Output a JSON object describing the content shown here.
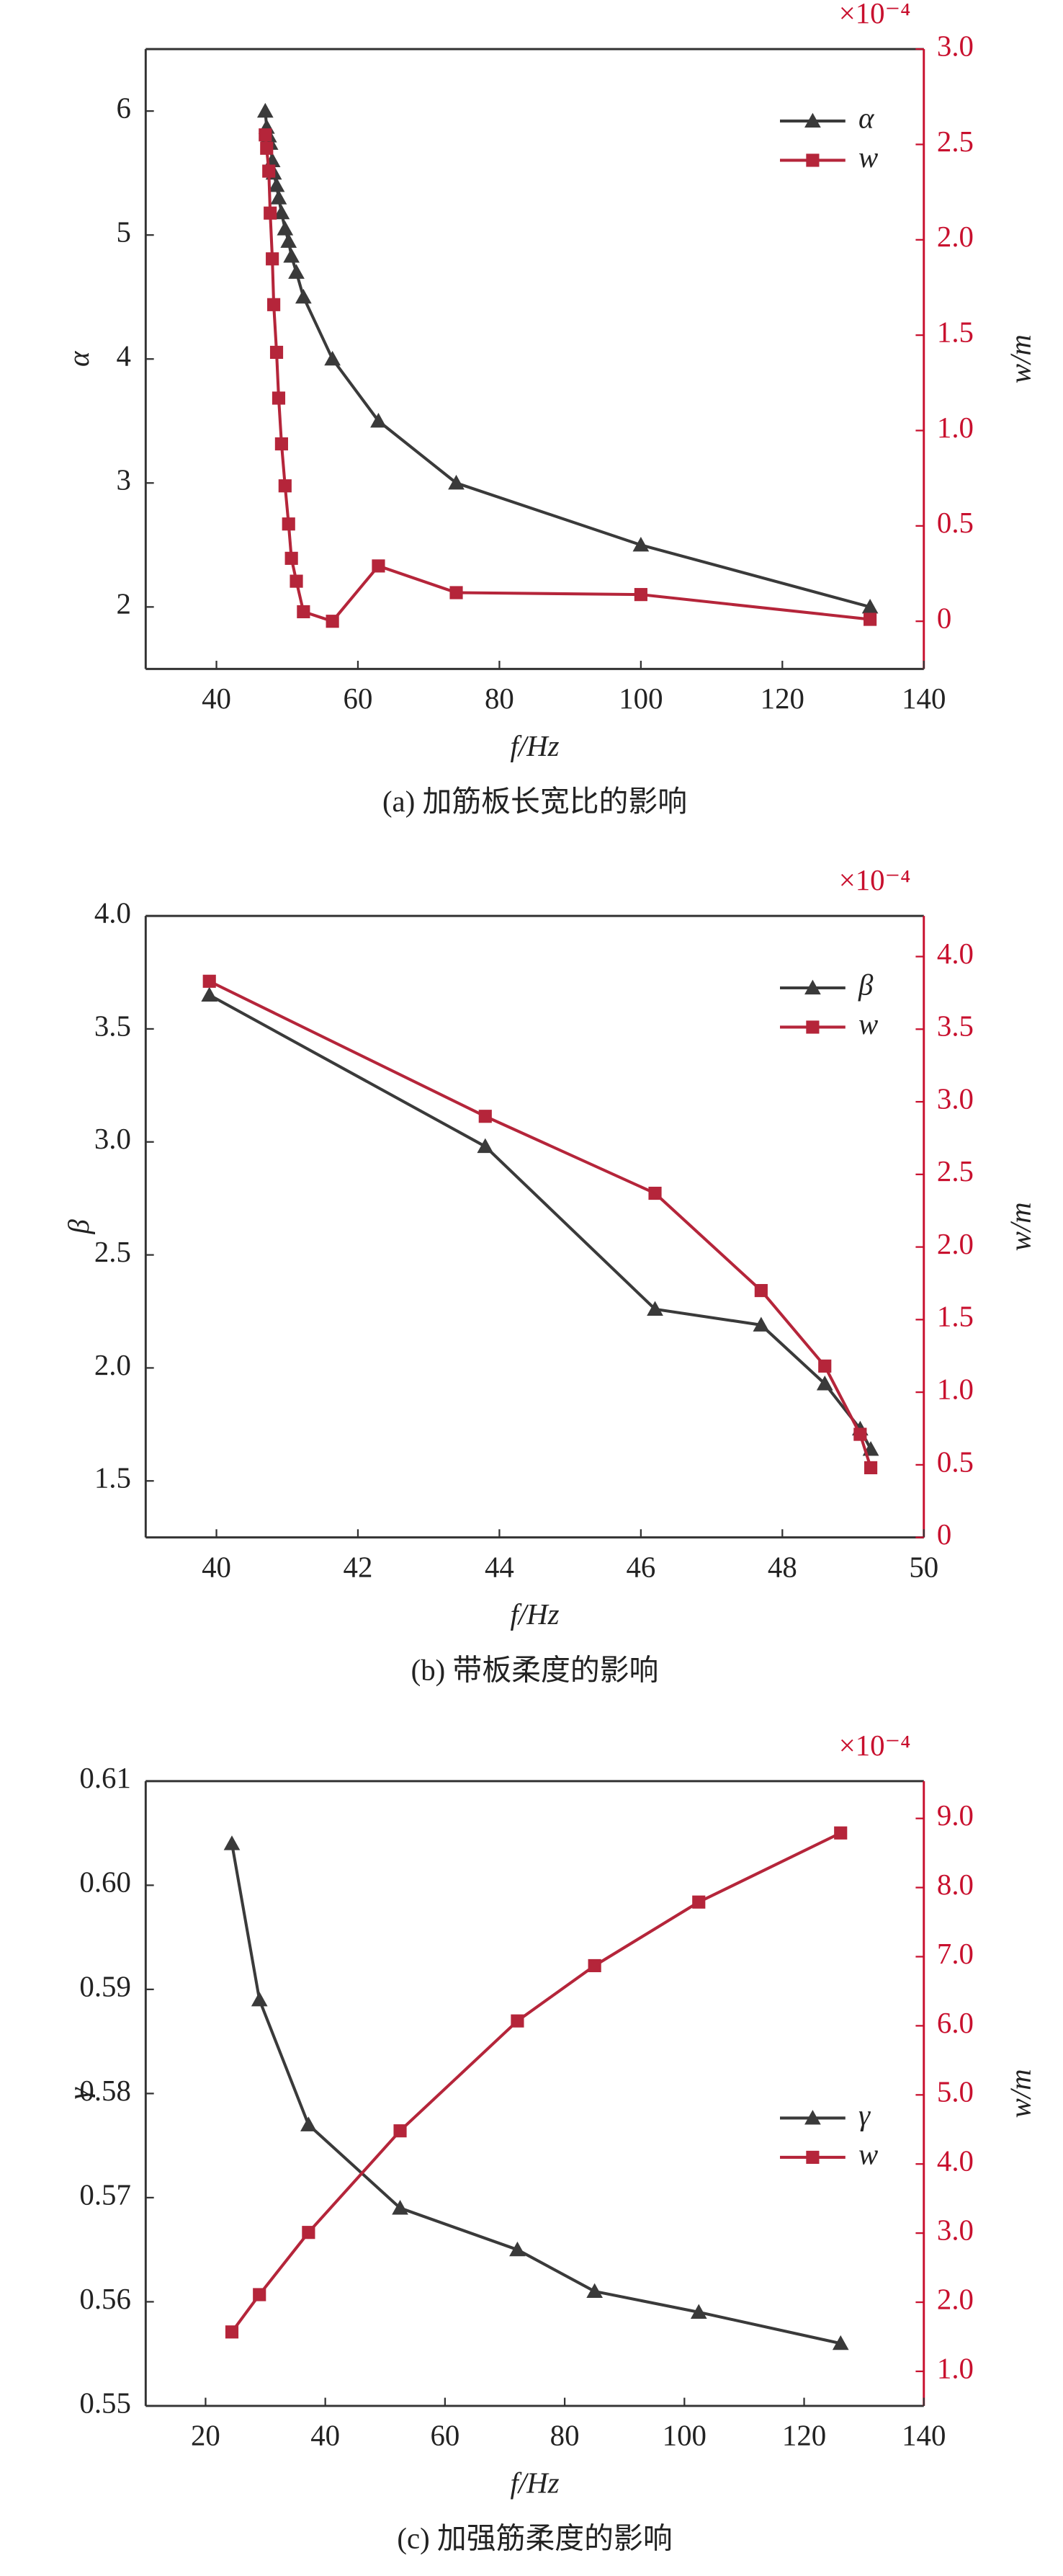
{
  "chart_data": [
    {
      "type": "line",
      "xlabel": "f/Hz",
      "ylabel": "α",
      "y2label": "w/m",
      "annotation": "×10⁻⁴",
      "caption": "(a) 加筋板长宽比的影响",
      "legend": "upper right",
      "x": [
        46.9,
        47.1,
        47.4,
        47.6,
        47.9,
        48.1,
        48.5,
        48.8,
        49.2,
        49.7,
        50.2,
        50.6,
        51.3,
        52.3,
        56.4,
        62.9,
        73.9,
        100,
        132.4
      ],
      "xlim": [
        30,
        140
      ],
      "xticks": [
        40,
        60,
        80,
        100,
        120,
        140
      ],
      "ylim": [
        1.5,
        6.5
      ],
      "yticks": [
        2,
        3,
        4,
        5,
        6
      ],
      "y2lim": [
        -0.25,
        3.0
      ],
      "y2ticks": [
        0,
        0.5,
        {
          "value": 1.0,
          "label": "1.0"
        },
        1.5,
        {
          "value": 2.0,
          "label": "2.0"
        },
        2.5,
        {
          "value": 3.0,
          "label": "3.0"
        }
      ],
      "series": [
        {
          "name": "α",
          "color": "#3a3a3a",
          "marker": "triangle",
          "values": [
            6.0,
            5.87,
            5.8,
            5.74,
            5.6,
            5.5,
            5.4,
            5.3,
            5.18,
            5.05,
            4.95,
            4.83,
            4.7,
            4.5,
            4.0,
            3.5,
            3.0,
            2.5,
            2.0
          ]
        },
        {
          "name": "w",
          "color": "#b5253a",
          "marker": "square",
          "axis": "y2",
          "values": [
            2.55,
            2.48,
            2.36,
            2.14,
            1.9,
            1.66,
            1.41,
            1.17,
            0.93,
            0.71,
            0.51,
            0.33,
            0.21,
            0.05,
            0.0,
            0.29,
            0.15,
            0.14,
            0.01
          ]
        }
      ]
    },
    {
      "type": "line",
      "xlabel": "f/Hz",
      "ylabel": "β",
      "y2label": "w/m",
      "annotation": "×10⁻⁴",
      "caption": "(b) 带板柔度的影响",
      "legend": "upper right",
      "x": [
        39.9,
        43.8,
        46.2,
        47.7,
        48.6,
        49.1,
        49.25
      ],
      "xlim": [
        39,
        50
      ],
      "xticks": [
        40,
        42,
        44,
        46,
        48,
        50
      ],
      "ylim": [
        1.25,
        4.0
      ],
      "yticks": [
        1.5,
        {
          "value": 2.0,
          "label": "2.0"
        },
        2.5,
        {
          "value": 3.0,
          "label": "3.0"
        },
        3.5,
        {
          "value": 4.0,
          "label": "4.0"
        }
      ],
      "y2lim": [
        0,
        4.28
      ],
      "y2ticks": [
        0,
        0.5,
        {
          "value": 1.0,
          "label": "1.0"
        },
        1.5,
        {
          "value": 2.0,
          "label": "2.0"
        },
        2.5,
        {
          "value": 3.0,
          "label": "3.0"
        },
        3.5,
        {
          "value": 4.0,
          "label": "4.0"
        }
      ],
      "series": [
        {
          "name": "β",
          "color": "#3a3a3a",
          "marker": "triangle",
          "values": [
            3.65,
            2.98,
            2.26,
            2.19,
            1.93,
            1.73,
            1.64
          ]
        },
        {
          "name": "w",
          "color": "#b5253a",
          "marker": "square",
          "axis": "y2",
          "values": [
            3.83,
            2.9,
            2.37,
            1.7,
            1.18,
            0.71,
            0.48
          ]
        }
      ]
    },
    {
      "type": "line",
      "xlabel": "f/Hz",
      "ylabel": "γ",
      "y2label": "w/m",
      "annotation": "×10⁻⁴",
      "caption": "(c) 加强筋柔度的影响",
      "legend": "center right",
      "x": [
        24.4,
        29,
        37.2,
        52.5,
        72.1,
        85,
        102.4,
        126.1
      ],
      "xlim": [
        10,
        140
      ],
      "xticks": [
        20,
        40,
        60,
        80,
        100,
        120,
        140
      ],
      "ylim": [
        0.55,
        0.61
      ],
      "yticks": [
        0.55,
        0.56,
        0.57,
        0.58,
        0.59,
        {
          "value": 0.6,
          "label": "0.60"
        },
        0.61
      ],
      "y2lim": [
        0.5,
        9.54
      ],
      "y2ticks": [
        {
          "value": 1.0,
          "label": "1.0"
        },
        {
          "value": 2.0,
          "label": "2.0"
        },
        {
          "value": 3.0,
          "label": "3.0"
        },
        {
          "value": 4.0,
          "label": "4.0"
        },
        {
          "value": 5.0,
          "label": "5.0"
        },
        {
          "value": 6.0,
          "label": "6.0"
        },
        {
          "value": 7.0,
          "label": "7.0"
        },
        {
          "value": 8.0,
          "label": "8.0"
        },
        {
          "value": 9.0,
          "label": "9.0"
        }
      ],
      "series": [
        {
          "name": "γ",
          "color": "#3a3a3a",
          "marker": "triangle",
          "values": [
            0.604,
            0.589,
            0.577,
            0.569,
            0.565,
            0.561,
            0.559,
            0.556
          ]
        },
        {
          "name": "w",
          "color": "#b5253a",
          "marker": "square",
          "axis": "y2",
          "values": [
            1.57,
            2.11,
            3.01,
            4.48,
            6.07,
            6.87,
            7.79,
            8.79
          ]
        }
      ]
    }
  ]
}
